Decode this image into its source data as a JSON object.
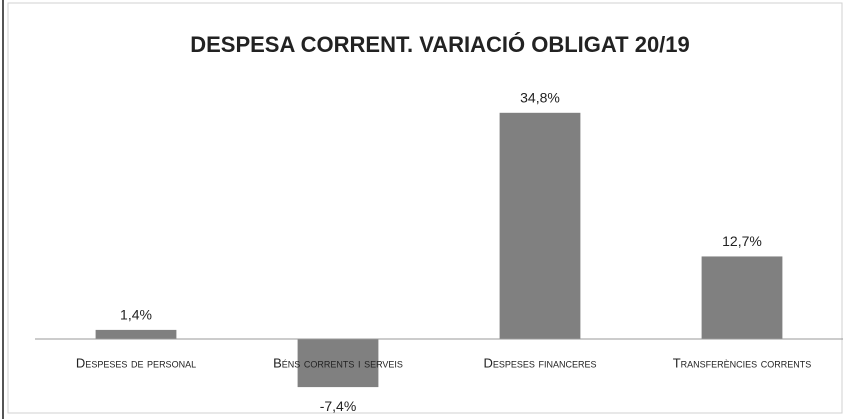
{
  "chart_data": {
    "type": "bar",
    "title": "DESPESA CORRENT. VARIACIÓ OBLIGAT 20/19",
    "categories": [
      "Despeses de personal",
      "Béns corrents i serveis",
      "Despeses financeres",
      "Transferències corrents"
    ],
    "values": [
      1.4,
      -7.4,
      34.8,
      12.7
    ],
    "value_labels": [
      "1,4%",
      "-7,4%",
      "34,8%",
      "12,7%"
    ],
    "color": "#808080",
    "ylim": [
      -10,
      40
    ]
  }
}
